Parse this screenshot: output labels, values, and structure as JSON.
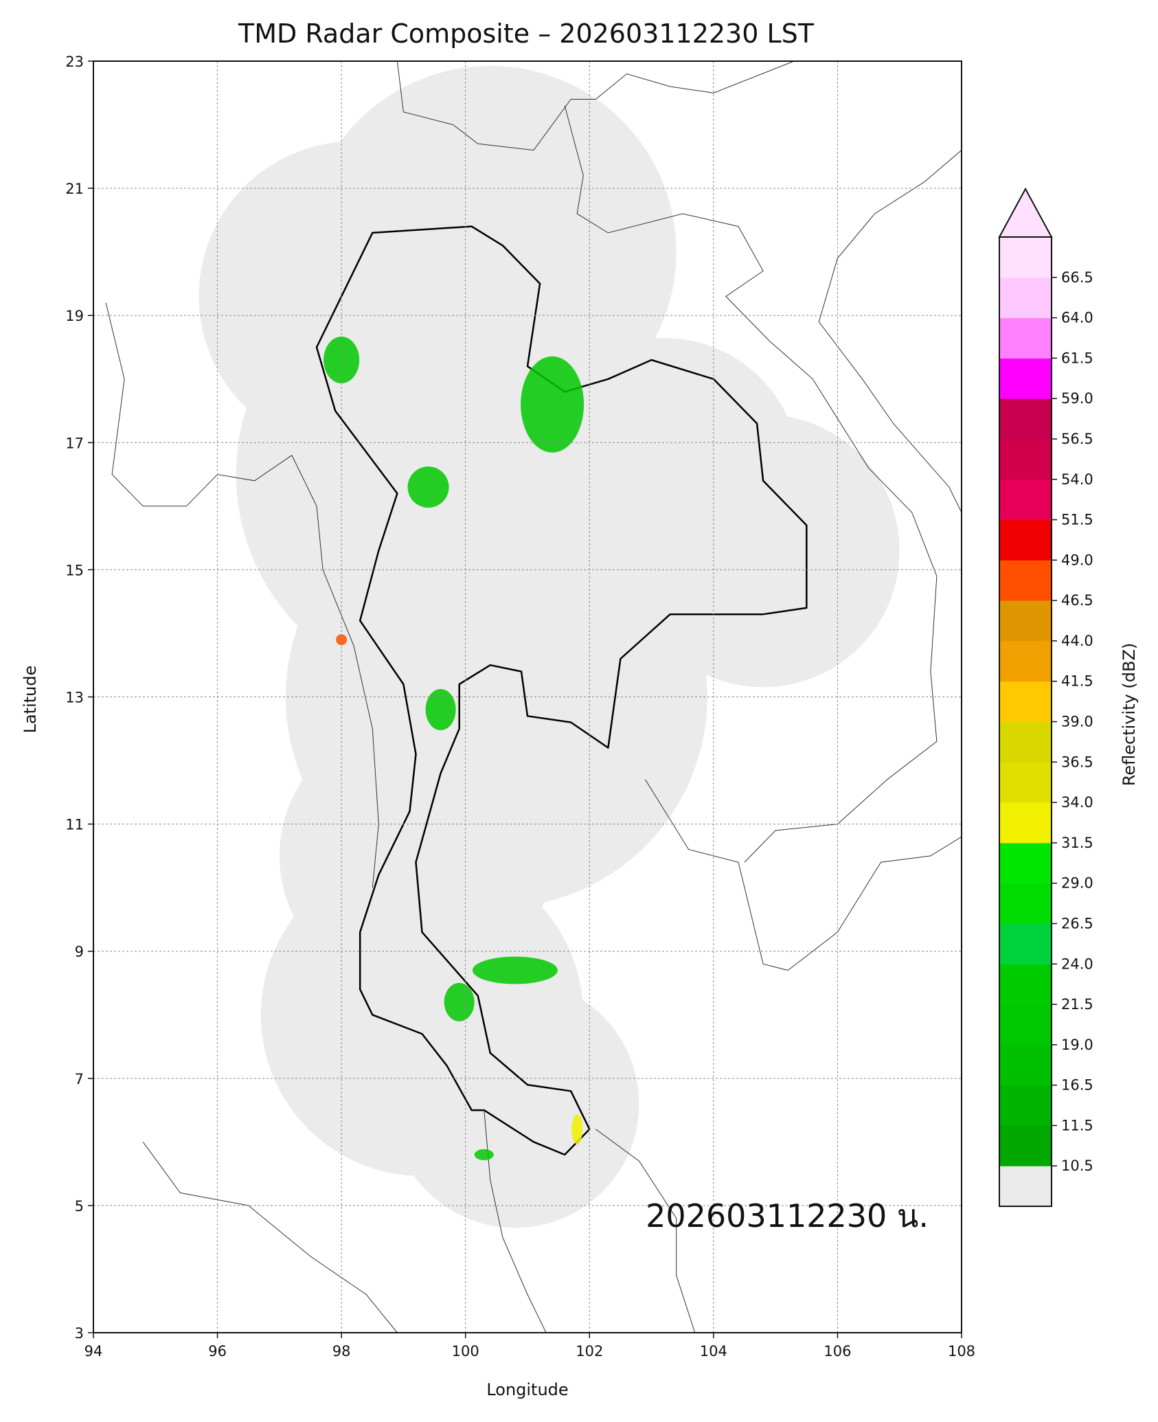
{
  "title": "TMD Radar Composite – 202603112230 LST",
  "timestamp_label": "202603112230 น.",
  "map": {
    "xlabel": "Longitude",
    "ylabel": "Latitude",
    "xlim": [
      94,
      108
    ],
    "ylim": [
      3,
      23
    ],
    "xticks": [
      "94",
      "96",
      "98",
      "100",
      "102",
      "104",
      "106",
      "108"
    ],
    "yticks": [
      "3",
      "5",
      "7",
      "9",
      "11",
      "13",
      "15",
      "17",
      "19",
      "21",
      "23"
    ],
    "grid": true,
    "coverage_fill": "#ebebeb",
    "radar_coverage_centers": [
      {
        "lon": 100.4,
        "lat": 20.0,
        "r": 3.0
      },
      {
        "lon": 98.2,
        "lat": 19.3,
        "r": 2.5
      },
      {
        "lon": 99.8,
        "lat": 16.5,
        "r": 3.5
      },
      {
        "lon": 104.8,
        "lat": 15.3,
        "r": 2.2
      },
      {
        "lon": 103.2,
        "lat": 16.5,
        "r": 2.2
      },
      {
        "lon": 100.5,
        "lat": 13.0,
        "r": 3.4
      },
      {
        "lon": 99.2,
        "lat": 10.5,
        "r": 2.2
      },
      {
        "lon": 99.3,
        "lat": 8.0,
        "r": 2.6
      },
      {
        "lon": 100.8,
        "lat": 6.6,
        "r": 2.0
      }
    ],
    "echo_areas": [
      {
        "lon": 101.4,
        "lat": 17.6,
        "color": "#00c800"
      },
      {
        "lon": 99.4,
        "lat": 16.3,
        "color": "#00c800"
      },
      {
        "lon": 98.0,
        "lat": 18.3,
        "color": "#00c800"
      },
      {
        "lon": 99.6,
        "lat": 12.8,
        "color": "#00c800"
      },
      {
        "lon": 100.8,
        "lat": 8.7,
        "color": "#00c800"
      },
      {
        "lon": 99.9,
        "lat": 8.2,
        "color": "#00c800"
      },
      {
        "lon": 101.8,
        "lat": 6.2,
        "color": "#f0f000"
      },
      {
        "lon": 98.0,
        "lat": 13.9,
        "color": "#ff5000"
      },
      {
        "lon": 100.3,
        "lat": 5.8,
        "color": "#00c800"
      }
    ]
  },
  "colorbar": {
    "label": "Reflectivity (dBZ)",
    "extend_top": true,
    "tick_labels": [
      "10.5",
      "11.5",
      "16.5",
      "19.0",
      "21.5",
      "24.0",
      "26.5",
      "29.0",
      "31.5",
      "34.0",
      "36.5",
      "39.0",
      "41.5",
      "44.0",
      "46.5",
      "49.0",
      "51.5",
      "54.0",
      "56.5",
      "59.0",
      "61.5",
      "64.0",
      "66.5"
    ],
    "colors": [
      "#ebebeb",
      "#00a800",
      "#00b400",
      "#00c000",
      "#00c800",
      "#00cc00",
      "#00d23c",
      "#00dc00",
      "#00e600",
      "#f0f000",
      "#e0e000",
      "#d8d800",
      "#ffc800",
      "#f0a000",
      "#e09600",
      "#ff5000",
      "#f00000",
      "#e6005a",
      "#d2004b",
      "#c80050",
      "#ff00ff",
      "#ff80ff",
      "#ffc8ff",
      "#ffe0ff"
    ]
  }
}
